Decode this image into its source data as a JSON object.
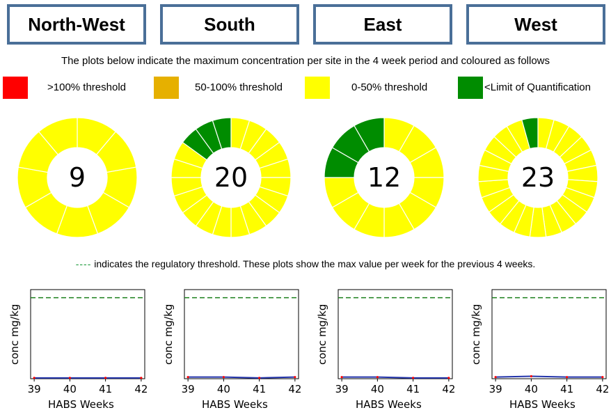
{
  "regions": [
    "North-West",
    "South",
    "East",
    "West"
  ],
  "intro_text": "The plots below indicate the maximum concentration per site in the 4 week period and coloured as follows",
  "legend": [
    {
      "label": ">100% threshold",
      "color": "#ff0000"
    },
    {
      "label": "50-100% threshold",
      "color": "#e6b000"
    },
    {
      "label": "0-50% threshold",
      "color": "#ffff00"
    },
    {
      "label": "<Limit of Quantification",
      "color": "#008c00"
    }
  ],
  "threshold_note": {
    "dash": "----",
    "text": " indicates the regulatory threshold. These plots show the max value per week for the previous 4 weeks."
  },
  "chart_data": [
    {
      "type": "pie",
      "region": "North-West",
      "total": "9",
      "segments": [
        {
          "category": "0-50% threshold",
          "count": 9,
          "color": "#ffff00"
        }
      ]
    },
    {
      "type": "pie",
      "region": "South",
      "total": "20",
      "segments": [
        {
          "category": "0-50% threshold",
          "count": 17,
          "color": "#ffff00"
        },
        {
          "category": "<Limit of Quantification",
          "count": 3,
          "color": "#008c00"
        }
      ]
    },
    {
      "type": "pie",
      "region": "East",
      "total": "12",
      "segments": [
        {
          "category": "0-50% threshold",
          "count": 9,
          "color": "#ffff00"
        },
        {
          "category": "<Limit of Quantification",
          "count": 3,
          "color": "#008c00"
        }
      ]
    },
    {
      "type": "pie",
      "region": "West",
      "total": "23",
      "segments": [
        {
          "category": "0-50% threshold",
          "count": 22,
          "color": "#ffff00"
        },
        {
          "category": "<Limit of Quantification",
          "count": 1,
          "color": "#008c00"
        }
      ]
    },
    {
      "type": "line",
      "region": "North-West",
      "xlabel": "HABS Weeks",
      "ylabel": "conc mg/kg",
      "x": [
        39,
        40,
        41,
        42
      ],
      "xticks": [
        "39",
        "40",
        "41",
        "42"
      ],
      "values": [
        0.01,
        0.01,
        0.01,
        0.01
      ],
      "threshold": 1.0,
      "ylim": [
        0,
        1.1
      ]
    },
    {
      "type": "line",
      "region": "South",
      "xlabel": "HABS Weeks",
      "ylabel": "conc mg/kg",
      "x": [
        39,
        40,
        41,
        42
      ],
      "xticks": [
        "39",
        "40",
        "41",
        "42"
      ],
      "values": [
        0.02,
        0.02,
        0.01,
        0.02
      ],
      "threshold": 1.0,
      "ylim": [
        0,
        1.1
      ]
    },
    {
      "type": "line",
      "region": "East",
      "xlabel": "HABS Weeks",
      "ylabel": "conc mg/kg",
      "x": [
        39,
        40,
        41,
        42
      ],
      "xticks": [
        "39",
        "40",
        "41",
        "42"
      ],
      "values": [
        0.02,
        0.02,
        0.01,
        0.01
      ],
      "threshold": 1.0,
      "ylim": [
        0,
        1.1
      ]
    },
    {
      "type": "line",
      "region": "West",
      "xlabel": "HABS Weeks",
      "ylabel": "conc mg/kg",
      "x": [
        39,
        40,
        41,
        42
      ],
      "xticks": [
        "39",
        "40",
        "41",
        "42"
      ],
      "values": [
        0.02,
        0.03,
        0.02,
        0.02
      ],
      "threshold": 1.0,
      "ylim": [
        0,
        1.1
      ]
    }
  ],
  "colors": {
    "region_border": "#4a6f98",
    "series_line": "#2233aa",
    "series_markers": "#ff0000",
    "threshold_line": "#1a7f1a",
    "donut_divider": "#ffffff"
  }
}
